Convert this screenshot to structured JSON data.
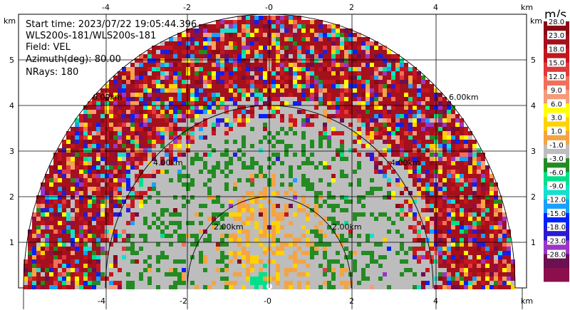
{
  "info": {
    "start_time": "Start time: 2023/07/22 19:05:44.396",
    "instrument": "WLS200s-181/WLS200s-181",
    "field": "Field: VEL",
    "azimuth": "Azimuth(deg): 80.00",
    "nrays": "NRays: 180"
  },
  "axes": {
    "x_ticks": [
      "-4",
      "-2",
      "-0",
      "2",
      "4"
    ],
    "y_ticks": [
      "1",
      "2",
      "3",
      "4",
      "5"
    ],
    "unit_label": "km"
  },
  "range_rings": [
    "2.00km",
    "2.00km",
    "4.00km",
    "4.00km",
    "6.00km",
    "6.00km"
  ],
  "colorbar": {
    "unit": "m/s",
    "labels": [
      "28.0",
      "23.0",
      "18.0",
      "15.0",
      "12.0",
      "9.0",
      "6.0",
      "3.0",
      "1.0",
      "-1.0",
      "-3.0",
      "-6.0",
      "-9.0",
      "-12.0",
      "-15.0",
      "-18.0",
      "-23.0",
      "-28.0"
    ],
    "colors": [
      "#8b0a14",
      "#a4101c",
      "#c4161f",
      "#e03a3c",
      "#f26f5a",
      "#f79a7a",
      "#ffff00",
      "#ffd200",
      "#f4a444",
      "#bdbdbd",
      "#228b22",
      "#00e08a",
      "#16dfcf",
      "#19a0ff",
      "#0022ff",
      "#2a1ad4",
      "#9b35c8",
      "#6b1050",
      "#8b0f4d"
    ]
  },
  "chart_data": {
    "type": "heatmap",
    "title": "",
    "x_unit": "km",
    "y_unit": "km",
    "xlim": [
      -6.0,
      6.0
    ],
    "ylim": [
      0,
      5.9
    ],
    "x_ticks": [
      -4,
      -2,
      0,
      2,
      4
    ],
    "y_ticks": [
      1,
      2,
      3,
      4,
      5
    ],
    "range_rings_km": [
      2,
      4,
      6
    ],
    "field": "VEL",
    "azimuth_deg": 80.0,
    "n_rays": 180,
    "color_scale_m_s": [
      -28,
      28
    ]
  }
}
